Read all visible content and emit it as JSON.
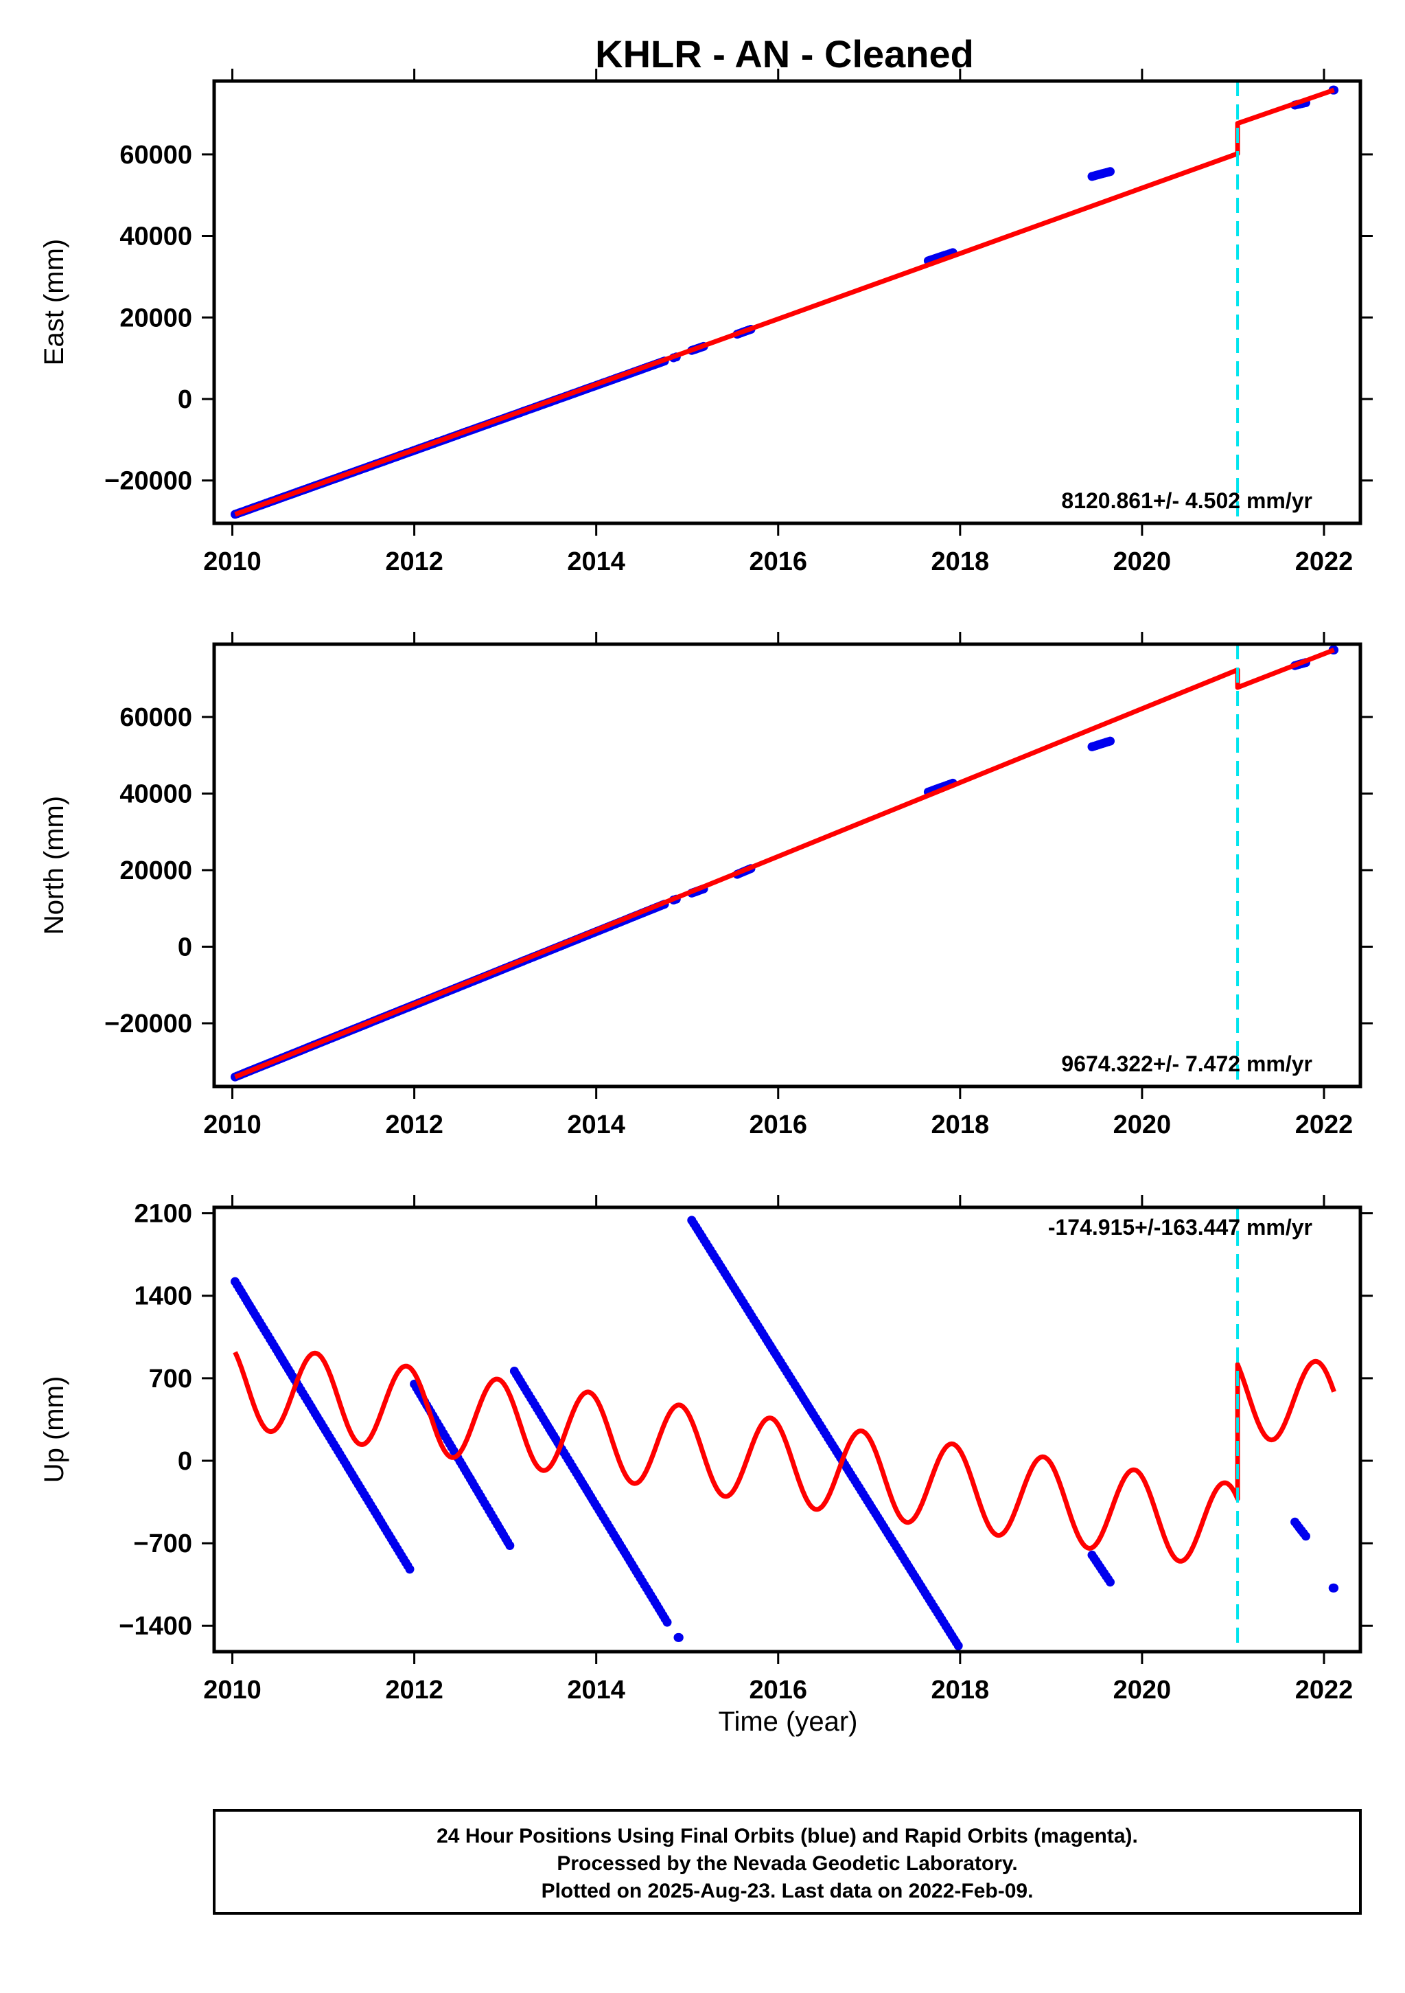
{
  "figure": {
    "title": "KHLR  - AN - Cleaned",
    "xlabel": "Time (year)",
    "footer": [
      "24 Hour Positions Using Final Orbits (blue) and Rapid Orbits (magenta).",
      "Processed by the Nevada Geodetic Laboratory.",
      "Plotted on 2025-Aug-23. Last data on 2022-Feb-09."
    ],
    "colors": {
      "final_orbit_points": "#0000ee",
      "model_fit": "#ff0000",
      "event_marker": "#00e5ee",
      "frame": "#000000"
    }
  },
  "chart_data": [
    {
      "type": "scatter",
      "name": "east",
      "ylabel": "East (mm)",
      "rate_label": "8120.861+/- 4.502 mm/yr",
      "xlim": [
        2009.8,
        2022.4
      ],
      "ylim": [
        -30500,
        78000
      ],
      "xticks": [
        2010,
        2012,
        2014,
        2016,
        2018,
        2020,
        2022
      ],
      "yticks": [
        -20000,
        0,
        20000,
        40000,
        60000
      ],
      "ytick_labels": [
        "−20000",
        "0",
        "20000",
        "40000",
        "60000"
      ],
      "event_lines": [
        2021.05
      ],
      "data_segments": [
        {
          "x_start": 2010.03,
          "x_end": 2014.75,
          "y_start": -28300,
          "y_end": 9300
        },
        {
          "x_start": 2014.85,
          "x_end": 2014.88,
          "y_start": 10100,
          "y_end": 10300
        },
        {
          "x_start": 2015.05,
          "x_end": 2015.18,
          "y_start": 11900,
          "y_end": 12900
        },
        {
          "x_start": 2015.55,
          "x_end": 2015.7,
          "y_start": 15900,
          "y_end": 17100
        },
        {
          "x_start": 2017.65,
          "x_end": 2017.92,
          "y_start": 33900,
          "y_end": 35900
        },
        {
          "x_start": 2019.45,
          "x_end": 2019.65,
          "y_start": 54600,
          "y_end": 55800
        },
        {
          "x_start": 2021.68,
          "x_end": 2021.8,
          "y_start": 72100,
          "y_end": 72700
        },
        {
          "x_start": 2022.1,
          "x_end": 2022.11,
          "y_start": 75800,
          "y_end": 75800
        }
      ],
      "model": [
        [
          2010.03,
          -28300
        ],
        [
          2021.05,
          60200
        ],
        [
          2021.05,
          67600
        ],
        [
          2022.11,
          75800
        ]
      ]
    },
    {
      "type": "scatter",
      "name": "north",
      "ylabel": "North (mm)",
      "rate_label": "9674.322+/- 7.472 mm/yr",
      "xlim": [
        2009.8,
        2022.4
      ],
      "ylim": [
        -36500,
        79000
      ],
      "xticks": [
        2010,
        2012,
        2014,
        2016,
        2018,
        2020,
        2022
      ],
      "yticks": [
        -20000,
        0,
        20000,
        40000,
        60000
      ],
      "ytick_labels": [
        "−20000",
        "0",
        "20000",
        "40000",
        "60000"
      ],
      "event_lines": [
        2021.05
      ],
      "data_segments": [
        {
          "x_start": 2010.03,
          "x_end": 2014.75,
          "y_start": -34000,
          "y_end": 11100
        },
        {
          "x_start": 2014.85,
          "x_end": 2014.88,
          "y_start": 12200,
          "y_end": 12400
        },
        {
          "x_start": 2015.05,
          "x_end": 2015.18,
          "y_start": 14000,
          "y_end": 15100
        },
        {
          "x_start": 2015.55,
          "x_end": 2015.7,
          "y_start": 18900,
          "y_end": 20400
        },
        {
          "x_start": 2017.65,
          "x_end": 2017.92,
          "y_start": 40400,
          "y_end": 42700
        },
        {
          "x_start": 2019.45,
          "x_end": 2019.65,
          "y_start": 52200,
          "y_end": 53700
        },
        {
          "x_start": 2021.68,
          "x_end": 2021.8,
          "y_start": 73400,
          "y_end": 74200
        },
        {
          "x_start": 2022.1,
          "x_end": 2022.11,
          "y_start": 77500,
          "y_end": 77500
        }
      ],
      "model": [
        [
          2010.03,
          -34000
        ],
        [
          2021.05,
          72300
        ],
        [
          2021.05,
          67700
        ],
        [
          2022.11,
          77500
        ]
      ]
    },
    {
      "type": "scatter",
      "name": "up",
      "ylabel": "Up (mm)",
      "rate_label": "-174.915+/-163.447 mm/yr",
      "xlim": [
        2009.8,
        2022.4
      ],
      "ylim": [
        -1620,
        2150
      ],
      "xticks": [
        2010,
        2012,
        2014,
        2016,
        2018,
        2020,
        2022
      ],
      "yticks": [
        -1400,
        -700,
        0,
        700,
        1400,
        2100
      ],
      "ytick_labels": [
        "−1400",
        "−700",
        "0",
        "700",
        "1400",
        "2100"
      ],
      "event_lines": [
        2021.05
      ],
      "data_segments": [
        {
          "x_start": 2010.03,
          "x_end": 2011.95,
          "y_start": 1520,
          "y_end": -920
        },
        {
          "x_start": 2012.0,
          "x_end": 2013.05,
          "y_start": 650,
          "y_end": -720
        },
        {
          "x_start": 2013.1,
          "x_end": 2014.78,
          "y_start": 760,
          "y_end": -1370
        },
        {
          "x_start": 2014.9,
          "x_end": 2014.91,
          "y_start": -1500,
          "y_end": -1500
        },
        {
          "x_start": 2015.05,
          "x_end": 2017.98,
          "y_start": 2040,
          "y_end": -1570
        },
        {
          "x_start": 2019.45,
          "x_end": 2019.65,
          "y_start": -800,
          "y_end": -1030
        },
        {
          "x_start": 2021.68,
          "x_end": 2021.8,
          "y_start": -520,
          "y_end": -640
        },
        {
          "x_start": 2022.1,
          "x_end": 2022.11,
          "y_start": -1080,
          "y_end": -1080
        }
      ],
      "model": {
        "x_start": 2010.03,
        "x_end": 2022.11,
        "offset": 650,
        "slope": -110,
        "amplitude": 360,
        "period": 1.0,
        "phase": 2.1,
        "break_at": 2021.05,
        "break_step": 1140
      }
    }
  ]
}
